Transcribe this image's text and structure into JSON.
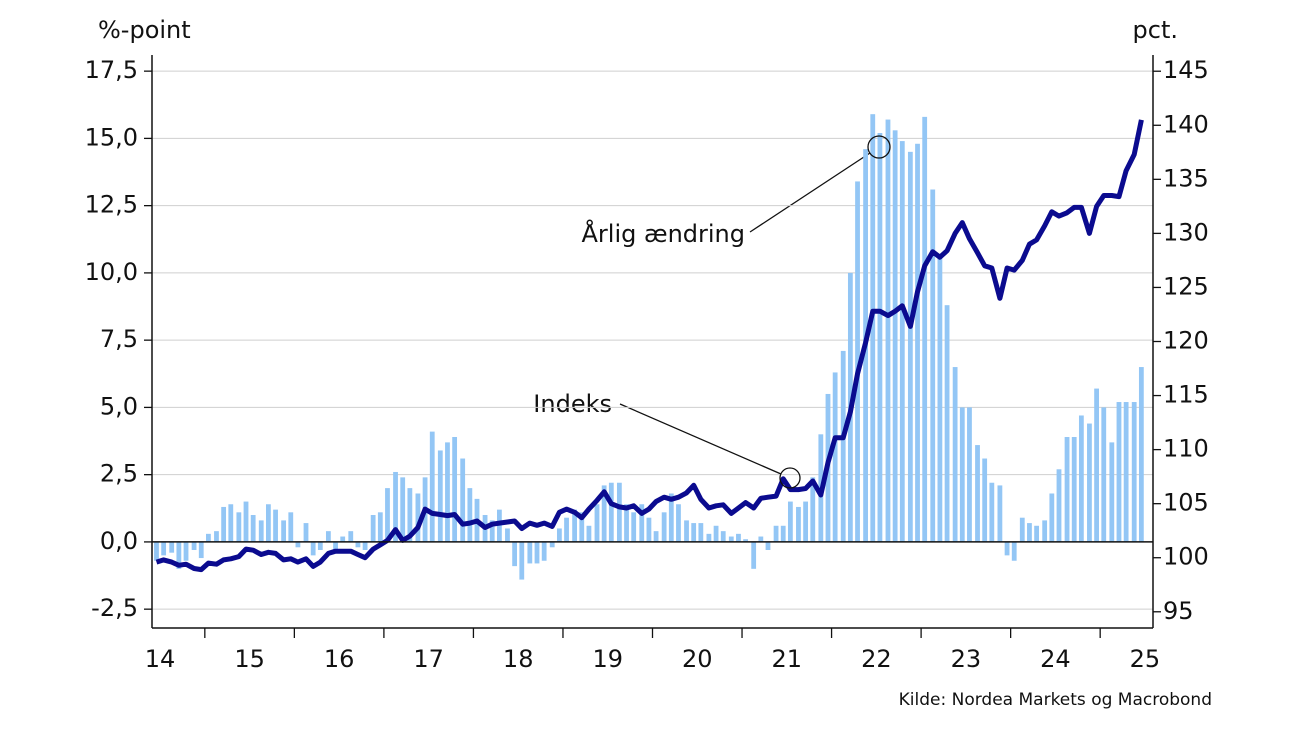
{
  "chart_data": {
    "type": "bar_line",
    "y_label": "%-point",
    "y2_label": "pct.",
    "source": "Kilde: Nordea Markets og Macrobond",
    "annotations": [
      "Årlig ændring",
      "Indeks"
    ],
    "xlim": [
      2014.41,
      2025.59
    ],
    "xtick_marks": [
      2015,
      2016,
      2017,
      2018,
      2019,
      2020,
      2021,
      2022,
      2023,
      2024,
      2025
    ],
    "xticks": [
      {
        "value": 2014.5,
        "label": "14"
      },
      {
        "value": 2015.5,
        "label": "15"
      },
      {
        "value": 2016.5,
        "label": "16"
      },
      {
        "value": 2017.5,
        "label": "17"
      },
      {
        "value": 2018.5,
        "label": "18"
      },
      {
        "value": 2019.5,
        "label": "19"
      },
      {
        "value": 2020.5,
        "label": "20"
      },
      {
        "value": 2021.5,
        "label": "21"
      },
      {
        "value": 2022.5,
        "label": "22"
      },
      {
        "value": 2023.5,
        "label": "23"
      },
      {
        "value": 2024.5,
        "label": "24"
      },
      {
        "value": 2025.5,
        "label": "25"
      }
    ],
    "ylim": [
      -3.2,
      18.1
    ],
    "yticks": [
      {
        "value": -2.5,
        "label": "-2,5"
      },
      {
        "value": 0,
        "label": "0,0"
      },
      {
        "value": 2.5,
        "label": "2,5"
      },
      {
        "value": 5,
        "label": "5,0"
      },
      {
        "value": 7.5,
        "label": "7,5"
      },
      {
        "value": 10,
        "label": "10,0"
      },
      {
        "value": 12.5,
        "label": "12,5"
      },
      {
        "value": 15,
        "label": "15,0"
      },
      {
        "value": 17.5,
        "label": "17,5"
      }
    ],
    "y2lim": [
      93.5,
      146.5
    ],
    "y2ticks": [
      95,
      100,
      105,
      110,
      115,
      120,
      125,
      130,
      135,
      140,
      145
    ],
    "grid": true,
    "x": [
      2014.46,
      2014.54,
      2014.63,
      2014.71,
      2014.79,
      2014.88,
      2014.96,
      2015.04,
      2015.13,
      2015.21,
      2015.29,
      2015.38,
      2015.46,
      2015.54,
      2015.63,
      2015.71,
      2015.79,
      2015.88,
      2015.96,
      2016.04,
      2016.13,
      2016.21,
      2016.29,
      2016.38,
      2016.46,
      2016.54,
      2016.63,
      2016.71,
      2016.79,
      2016.88,
      2016.96,
      2017.04,
      2017.13,
      2017.21,
      2017.29,
      2017.38,
      2017.46,
      2017.54,
      2017.63,
      2017.71,
      2017.79,
      2017.88,
      2017.96,
      2018.04,
      2018.13,
      2018.21,
      2018.29,
      2018.38,
      2018.46,
      2018.54,
      2018.63,
      2018.71,
      2018.79,
      2018.88,
      2018.96,
      2019.04,
      2019.13,
      2019.21,
      2019.29,
      2019.38,
      2019.46,
      2019.54,
      2019.63,
      2019.71,
      2019.79,
      2019.88,
      2019.96,
      2020.04,
      2020.13,
      2020.21,
      2020.29,
      2020.38,
      2020.46,
      2020.54,
      2020.63,
      2020.71,
      2020.79,
      2020.88,
      2020.96,
      2021.04,
      2021.13,
      2021.21,
      2021.29,
      2021.38,
      2021.46,
      2021.54,
      2021.63,
      2021.71,
      2021.79,
      2021.88,
      2021.96,
      2022.04,
      2022.13,
      2022.21,
      2022.29,
      2022.38,
      2022.46,
      2022.54,
      2022.63,
      2022.71,
      2022.79,
      2022.88,
      2022.96,
      2023.04,
      2023.13,
      2023.21,
      2023.29,
      2023.38,
      2023.46,
      2023.54,
      2023.63,
      2023.71,
      2023.79,
      2023.88,
      2023.96,
      2024.04,
      2024.13,
      2024.21,
      2024.29,
      2024.38,
      2024.46,
      2024.54,
      2024.63,
      2024.71,
      2024.79,
      2024.88,
      2024.96,
      2025.04,
      2025.13,
      2025.21,
      2025.29,
      2025.38,
      2025.46
    ],
    "series": [
      {
        "name": "Årlig ændring",
        "kind": "bar",
        "color": "#93c6f5",
        "values": [
          -0.7,
          -0.5,
          -0.4,
          -1.0,
          -0.7,
          -0.3,
          -0.6,
          0.3,
          0.4,
          1.3,
          1.4,
          1.1,
          1.5,
          1.0,
          0.8,
          1.4,
          1.2,
          0.8,
          1.1,
          -0.2,
          0.7,
          -0.5,
          -0.3,
          0.4,
          -0.4,
          0.2,
          0.4,
          -0.2,
          -0.3,
          1.0,
          1.1,
          2.0,
          2.6,
          2.4,
          2.0,
          1.8,
          2.4,
          4.1,
          3.4,
          3.7,
          3.9,
          3.1,
          2.0,
          1.6,
          1.0,
          0.8,
          1.2,
          0.5,
          -0.9,
          -1.4,
          -0.8,
          -0.8,
          -0.7,
          -0.2,
          0.5,
          0.9,
          1.2,
          1.1,
          0.6,
          1.4,
          2.1,
          2.2,
          2.2,
          1.4,
          1.1,
          1.4,
          0.9,
          0.4,
          1.1,
          1.8,
          1.4,
          0.8,
          0.7,
          0.7,
          0.3,
          0.6,
          0.4,
          0.2,
          0.3,
          0.1,
          -1.0,
          0.2,
          -0.3,
          0.6,
          0.6,
          1.5,
          1.3,
          1.5,
          2.4,
          4.0,
          5.5,
          6.3,
          7.1,
          10.0,
          13.4,
          14.6,
          15.9,
          15.2,
          15.7,
          15.3,
          14.9,
          14.5,
          14.8,
          15.8,
          13.1,
          10.7,
          8.8,
          6.5,
          5.0,
          5.0,
          3.6,
          3.1,
          2.2,
          2.1,
          -0.5,
          -0.7,
          0.9,
          0.7,
          0.6,
          0.8,
          1.8,
          2.7,
          3.9,
          3.9,
          4.7,
          4.4,
          5.7,
          5.0,
          3.7,
          5.2,
          5.2,
          5.2,
          6.5
        ]
      },
      {
        "name": "Indeks",
        "kind": "line",
        "axis": "y2",
        "color": "#0b0b8f",
        "values": [
          99.6,
          99.8,
          99.6,
          99.3,
          99.4,
          99.0,
          98.9,
          99.5,
          99.4,
          99.8,
          99.9,
          100.1,
          100.8,
          100.7,
          100.3,
          100.5,
          100.4,
          99.8,
          99.9,
          99.6,
          99.9,
          99.2,
          99.6,
          100.4,
          100.6,
          100.6,
          100.6,
          100.3,
          100.0,
          100.8,
          101.2,
          101.6,
          102.6,
          101.6,
          102.0,
          102.8,
          104.5,
          104.1,
          104.0,
          103.9,
          104.0,
          103.1,
          103.2,
          103.4,
          102.8,
          103.1,
          103.2,
          103.3,
          103.4,
          102.7,
          103.2,
          103.0,
          103.2,
          102.9,
          104.2,
          104.5,
          104.2,
          103.7,
          104.5,
          105.3,
          106.1,
          105.0,
          104.7,
          104.6,
          104.8,
          104.1,
          104.5,
          105.2,
          105.6,
          105.4,
          105.6,
          106.0,
          106.7,
          105.4,
          104.6,
          104.8,
          104.9,
          104.1,
          104.6,
          105.1,
          104.6,
          105.5,
          105.6,
          105.7,
          107.3,
          106.3,
          106.3,
          106.4,
          107.1,
          105.8,
          108.8,
          111.1,
          111.1,
          113.5,
          117.0,
          119.9,
          122.8,
          122.8,
          122.4,
          122.8,
          123.3,
          121.4,
          124.6,
          127.0,
          128.3,
          127.8,
          128.4,
          130.0,
          131.0,
          129.5,
          128.2,
          127.0,
          126.8,
          124.0,
          126.8,
          126.6,
          127.5,
          129.0,
          129.4,
          130.7,
          132.0,
          131.6,
          131.9,
          132.4,
          132.4,
          130.0,
          132.5,
          133.5,
          133.5,
          133.4,
          135.8,
          137.3,
          140.5
        ]
      }
    ]
  }
}
